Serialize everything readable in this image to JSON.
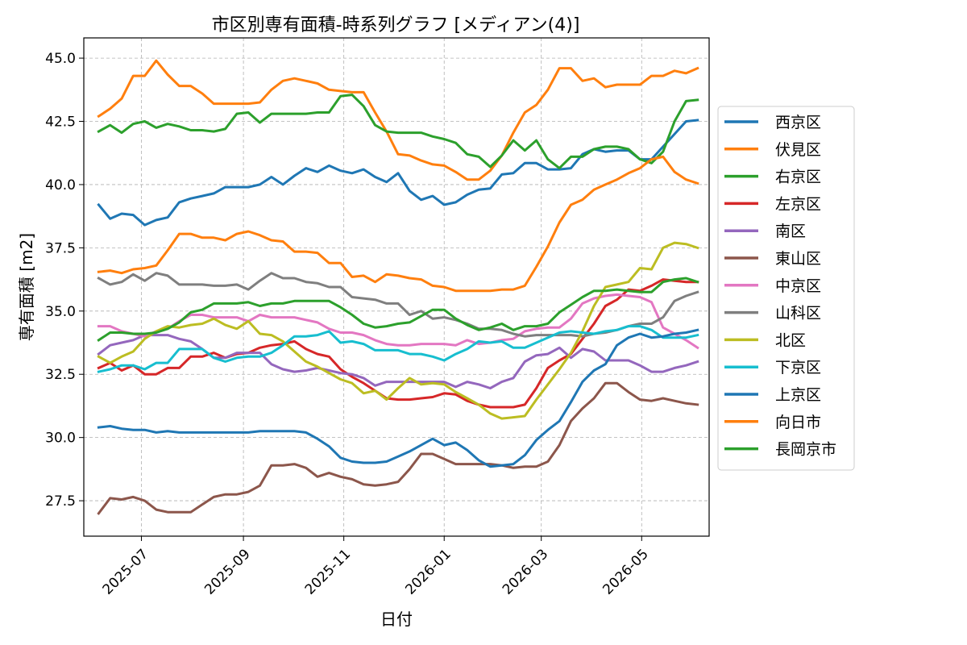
{
  "chart_data": {
    "type": "line",
    "title": "市区別専有面積-時系列グラフ [メディアン(4)]",
    "xlabel": "日付",
    "ylabel": "専有面積 [m2]",
    "ylim": [
      26.1,
      45.8
    ],
    "xlim": [
      "2025-05-27",
      "2026-06-11"
    ],
    "grid": true,
    "legend_position": "right",
    "x_ticks": [
      "2025-07",
      "2025-09",
      "2025-11",
      "2026-01",
      "2026-03",
      "2026-05"
    ],
    "y_ticks": [
      "27.5",
      "30.0",
      "32.5",
      "35.0",
      "37.5",
      "40.0",
      "42.5",
      "45.0"
    ],
    "x": [
      "2025-06-05",
      "2025-06-12",
      "2025-06-19",
      "2025-06-26",
      "2025-07-03",
      "2025-07-10",
      "2025-07-17",
      "2025-07-24",
      "2025-07-31",
      "2025-08-07",
      "2025-08-14",
      "2025-08-21",
      "2025-08-28",
      "2025-09-04",
      "2025-09-11",
      "2025-09-18",
      "2025-09-25",
      "2025-10-02",
      "2025-10-09",
      "2025-10-16",
      "2025-10-23",
      "2025-10-30",
      "2025-11-06",
      "2025-11-13",
      "2025-11-20",
      "2025-11-27",
      "2025-12-04",
      "2025-12-11",
      "2025-12-18",
      "2025-12-25",
      "2026-01-01",
      "2026-01-08",
      "2026-01-15",
      "2026-01-22",
      "2026-01-29",
      "2026-02-05",
      "2026-02-12",
      "2026-02-19",
      "2026-02-26",
      "2026-03-05",
      "2026-03-12",
      "2026-03-19",
      "2026-03-26",
      "2026-04-02",
      "2026-04-09",
      "2026-04-16",
      "2026-04-23",
      "2026-04-30",
      "2026-05-07",
      "2026-05-14",
      "2026-05-21",
      "2026-05-28",
      "2026-06-04"
    ],
    "series": [
      {
        "name": "西京区",
        "color": "#1f77b4",
        "values": [
          39.2,
          38.65,
          38.85,
          38.8,
          38.4,
          38.6,
          38.7,
          39.3,
          39.45,
          39.55,
          39.65,
          39.9,
          39.9,
          39.9,
          40.0,
          40.3,
          40.0,
          40.35,
          40.65,
          40.5,
          40.75,
          40.55,
          40.45,
          40.6,
          40.3,
          40.1,
          40.45,
          39.75,
          39.4,
          39.55,
          39.2,
          39.3,
          39.6,
          39.8,
          39.85,
          40.4,
          40.45,
          40.85,
          40.85,
          40.6,
          40.6,
          40.65,
          41.2,
          41.4,
          41.3,
          41.35,
          41.35,
          41.0,
          41.0,
          41.5,
          42.0,
          42.5,
          42.55
        ]
      },
      {
        "name": "伏見区",
        "color": "#ff7f0e",
        "values": [
          42.7,
          43.0,
          43.4,
          44.3,
          44.3,
          44.9,
          44.35,
          43.9,
          43.9,
          43.6,
          43.2,
          43.2,
          43.2,
          43.2,
          43.25,
          43.75,
          44.1,
          44.2,
          44.1,
          44.0,
          43.75,
          43.7,
          43.65,
          43.65,
          42.85,
          42.1,
          41.2,
          41.15,
          40.95,
          40.8,
          40.75,
          40.5,
          40.2,
          40.2,
          40.55,
          41.15,
          42.05,
          42.85,
          43.15,
          43.75,
          44.6,
          44.6,
          44.1,
          44.2,
          43.85,
          43.95,
          43.95,
          43.95,
          44.3,
          44.3,
          44.5,
          44.4,
          44.6
        ]
      },
      {
        "name": "右京区",
        "color": "#2ca02c",
        "values": [
          42.1,
          42.35,
          42.05,
          42.4,
          42.5,
          42.25,
          42.4,
          42.3,
          42.15,
          42.15,
          42.1,
          42.2,
          42.8,
          42.85,
          42.45,
          42.8,
          42.8,
          42.8,
          42.8,
          42.85,
          42.85,
          43.5,
          43.55,
          43.1,
          42.35,
          42.1,
          42.05,
          42.05,
          42.05,
          41.9,
          41.8,
          41.65,
          41.2,
          41.1,
          40.7,
          41.15,
          41.75,
          41.35,
          41.75,
          41.0,
          40.65,
          41.1,
          41.1,
          41.4,
          41.5,
          41.5,
          41.4,
          41.0,
          40.85,
          41.3,
          42.5,
          43.3,
          43.35
        ]
      },
      {
        "name": "左京区",
        "color": "#d62728",
        "values": [
          32.75,
          32.95,
          32.65,
          32.85,
          32.5,
          32.5,
          32.75,
          32.75,
          33.2,
          33.2,
          33.35,
          33.15,
          33.3,
          33.35,
          33.55,
          33.65,
          33.7,
          33.8,
          33.5,
          33.3,
          33.2,
          32.7,
          32.4,
          32.15,
          31.85,
          31.55,
          31.5,
          31.5,
          31.55,
          31.6,
          31.75,
          31.7,
          31.45,
          31.3,
          31.2,
          31.2,
          31.2,
          31.3,
          31.95,
          32.75,
          33.05,
          33.3,
          33.9,
          34.5,
          35.2,
          35.45,
          35.85,
          35.8,
          36.0,
          36.25,
          36.2,
          36.15,
          36.15
        ]
      },
      {
        "name": "南区",
        "color": "#9467bd",
        "values": [
          33.3,
          33.65,
          33.75,
          33.85,
          34.05,
          34.05,
          34.05,
          33.9,
          33.8,
          33.5,
          33.15,
          33.15,
          33.35,
          33.35,
          33.35,
          32.9,
          32.7,
          32.6,
          32.65,
          32.75,
          32.65,
          32.55,
          32.5,
          32.35,
          32.05,
          32.2,
          32.2,
          32.2,
          32.2,
          32.2,
          32.2,
          32.0,
          32.2,
          32.1,
          31.95,
          32.2,
          32.35,
          33.0,
          33.25,
          33.3,
          33.55,
          33.15,
          33.5,
          33.4,
          33.05,
          33.05,
          33.05,
          32.85,
          32.6,
          32.6,
          32.75,
          32.85,
          33.0
        ]
      },
      {
        "name": "東山区",
        "color": "#8c564b",
        "values": [
          27.0,
          27.6,
          27.55,
          27.65,
          27.5,
          27.15,
          27.05,
          27.05,
          27.05,
          27.35,
          27.65,
          27.75,
          27.75,
          27.85,
          28.1,
          28.9,
          28.9,
          28.95,
          28.8,
          28.45,
          28.6,
          28.45,
          28.35,
          28.15,
          28.1,
          28.15,
          28.25,
          28.75,
          29.35,
          29.35,
          29.15,
          28.95,
          28.95,
          28.95,
          28.95,
          28.9,
          28.8,
          28.85,
          28.85,
          29.05,
          29.7,
          30.65,
          31.15,
          31.55,
          32.15,
          32.15,
          31.8,
          31.5,
          31.45,
          31.55,
          31.45,
          31.35,
          31.3
        ]
      },
      {
        "name": "中京区",
        "color": "#e377c2",
        "values": [
          34.4,
          34.4,
          34.2,
          34.1,
          34.0,
          34.2,
          34.3,
          34.6,
          34.85,
          34.85,
          34.75,
          34.75,
          34.75,
          34.6,
          34.85,
          34.75,
          34.75,
          34.75,
          34.65,
          34.55,
          34.3,
          34.15,
          34.15,
          34.05,
          33.85,
          33.7,
          33.65,
          33.65,
          33.7,
          33.7,
          33.7,
          33.65,
          33.85,
          33.7,
          33.75,
          33.85,
          33.9,
          34.2,
          34.3,
          34.35,
          34.35,
          34.7,
          35.3,
          35.5,
          35.6,
          35.65,
          35.6,
          35.55,
          35.35,
          34.35,
          34.1,
          33.85,
          33.55
        ]
      },
      {
        "name": "山科区",
        "color": "#7f7f7f",
        "values": [
          36.3,
          36.05,
          36.15,
          36.45,
          36.2,
          36.5,
          36.4,
          36.05,
          36.05,
          36.05,
          36.0,
          36.0,
          36.05,
          35.85,
          36.2,
          36.5,
          36.3,
          36.3,
          36.15,
          36.1,
          35.95,
          35.95,
          35.55,
          35.5,
          35.45,
          35.3,
          35.3,
          34.85,
          35.0,
          34.7,
          34.75,
          34.65,
          34.5,
          34.3,
          34.3,
          34.25,
          34.1,
          34.0,
          34.05,
          34.05,
          34.05,
          34.05,
          34.0,
          34.1,
          34.15,
          34.25,
          34.4,
          34.5,
          34.5,
          34.75,
          35.4,
          35.6,
          35.75
        ]
      },
      {
        "name": "北区",
        "color": "#bcbd22",
        "values": [
          33.2,
          32.95,
          33.2,
          33.4,
          33.9,
          34.2,
          34.4,
          34.35,
          34.45,
          34.5,
          34.7,
          34.45,
          34.3,
          34.6,
          34.1,
          34.05,
          33.8,
          33.4,
          33.0,
          32.8,
          32.55,
          32.3,
          32.15,
          31.75,
          31.85,
          31.5,
          31.95,
          32.35,
          32.1,
          32.15,
          32.1,
          31.8,
          31.55,
          31.3,
          30.95,
          30.75,
          30.8,
          30.85,
          31.5,
          32.1,
          32.7,
          33.35,
          34.2,
          35.2,
          35.95,
          36.05,
          36.15,
          36.7,
          36.65,
          37.5,
          37.7,
          37.65,
          37.5
        ]
      },
      {
        "name": "下京区",
        "color": "#17becf",
        "values": [
          32.6,
          32.7,
          32.85,
          32.85,
          32.7,
          32.95,
          32.95,
          33.5,
          33.5,
          33.5,
          33.15,
          33.0,
          33.15,
          33.2,
          33.2,
          33.35,
          33.65,
          34.0,
          34.0,
          34.05,
          34.2,
          33.75,
          33.8,
          33.7,
          33.45,
          33.45,
          33.45,
          33.3,
          33.3,
          33.2,
          33.05,
          33.3,
          33.5,
          33.8,
          33.75,
          33.8,
          33.55,
          33.55,
          33.75,
          33.95,
          34.15,
          34.2,
          34.15,
          34.1,
          34.2,
          34.25,
          34.4,
          34.4,
          34.25,
          33.95,
          33.95,
          33.95,
          34.05
        ]
      },
      {
        "name": "上京区",
        "color": "#1f77b4",
        "values": [
          30.4,
          30.45,
          30.35,
          30.3,
          30.3,
          30.2,
          30.25,
          30.2,
          30.2,
          30.2,
          30.2,
          30.2,
          30.2,
          30.2,
          30.25,
          30.25,
          30.25,
          30.25,
          30.2,
          29.95,
          29.65,
          29.2,
          29.05,
          29.0,
          29.0,
          29.05,
          29.25,
          29.45,
          29.7,
          29.95,
          29.7,
          29.8,
          29.5,
          29.1,
          28.85,
          28.9,
          28.95,
          29.3,
          29.9,
          30.3,
          30.65,
          31.4,
          32.2,
          32.65,
          32.9,
          33.65,
          33.95,
          34.1,
          33.95,
          34.0,
          34.1,
          34.15,
          34.25
        ]
      },
      {
        "name": "向日市",
        "color": "#ff7f0e",
        "values": [
          36.55,
          36.6,
          36.5,
          36.65,
          36.7,
          36.8,
          37.4,
          38.05,
          38.05,
          37.9,
          37.9,
          37.8,
          38.05,
          38.15,
          38.0,
          37.8,
          37.75,
          37.35,
          37.35,
          37.3,
          36.9,
          36.9,
          36.35,
          36.4,
          36.15,
          36.45,
          36.4,
          36.3,
          36.25,
          36.0,
          35.95,
          35.8,
          35.8,
          35.8,
          35.8,
          35.85,
          35.85,
          36.0,
          36.75,
          37.55,
          38.5,
          39.2,
          39.4,
          39.8,
          40.0,
          40.2,
          40.45,
          40.65,
          41.0,
          41.1,
          40.5,
          40.2,
          40.05
        ]
      },
      {
        "name": "長岡京市",
        "color": "#2ca02c",
        "values": [
          33.85,
          34.15,
          34.15,
          34.1,
          34.1,
          34.15,
          34.3,
          34.55,
          34.95,
          35.05,
          35.3,
          35.3,
          35.3,
          35.35,
          35.2,
          35.3,
          35.3,
          35.4,
          35.4,
          35.4,
          35.4,
          35.15,
          34.85,
          34.5,
          34.35,
          34.4,
          34.5,
          34.55,
          34.8,
          35.05,
          35.05,
          34.7,
          34.45,
          34.25,
          34.35,
          34.5,
          34.25,
          34.4,
          34.4,
          34.5,
          34.95,
          35.25,
          35.55,
          35.8,
          35.8,
          35.85,
          35.8,
          35.75,
          35.75,
          36.15,
          36.25,
          36.3,
          36.15
        ]
      }
    ]
  }
}
